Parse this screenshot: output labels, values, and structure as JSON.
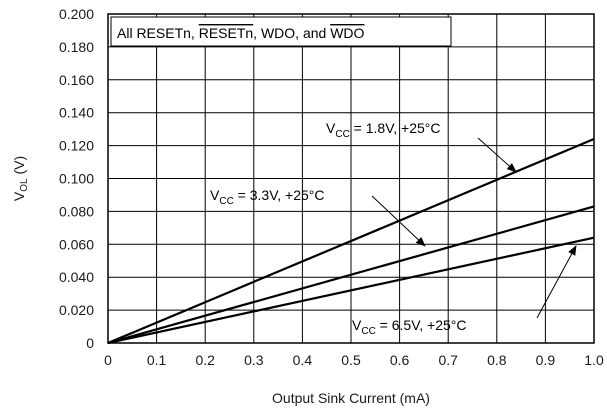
{
  "chart_data": {
    "type": "line",
    "title": "",
    "xlabel": "Output Sink Current (mA)",
    "ylabel": {
      "main": "V",
      "sub": "OL",
      "tail": " (V)"
    },
    "xlim": [
      0,
      1.0
    ],
    "ylim": [
      0,
      0.2
    ],
    "grid": true,
    "x_ticks": [
      "0",
      "0.1",
      "0.2",
      "0.3",
      "0.4",
      "0.5",
      "0.6",
      "0.7",
      "0.8",
      "0.9",
      "1.0"
    ],
    "y_ticks": [
      "0",
      "0.020",
      "0.040",
      "0.060",
      "0.080",
      "0.100",
      "0.120",
      "0.140",
      "0.160",
      "0.180",
      "0.200"
    ],
    "legend_box": {
      "parts": [
        {
          "text": "All RESETn, ",
          "overline": false
        },
        {
          "text": "RESETn",
          "overline": true
        },
        {
          "text": ", WDO, and ",
          "overline": false
        },
        {
          "text": "WDO",
          "overline": true
        }
      ]
    },
    "series": [
      {
        "x": [
          0,
          1.0
        ],
        "y": [
          0,
          0.124
        ],
        "label": {
          "main": "V",
          "sub": "CC",
          "tail": " = 1.8V, +25°C"
        }
      },
      {
        "x": [
          0,
          1.0
        ],
        "y": [
          0,
          0.083
        ],
        "label": {
          "main": "V",
          "sub": "CC",
          "tail": " = 3.3V, +25°C"
        }
      },
      {
        "x": [
          0,
          1.0
        ],
        "y": [
          0,
          0.064
        ],
        "label": {
          "main": "V",
          "sub": "CC",
          "tail": " = 6.5V, +25°C"
        }
      }
    ]
  }
}
